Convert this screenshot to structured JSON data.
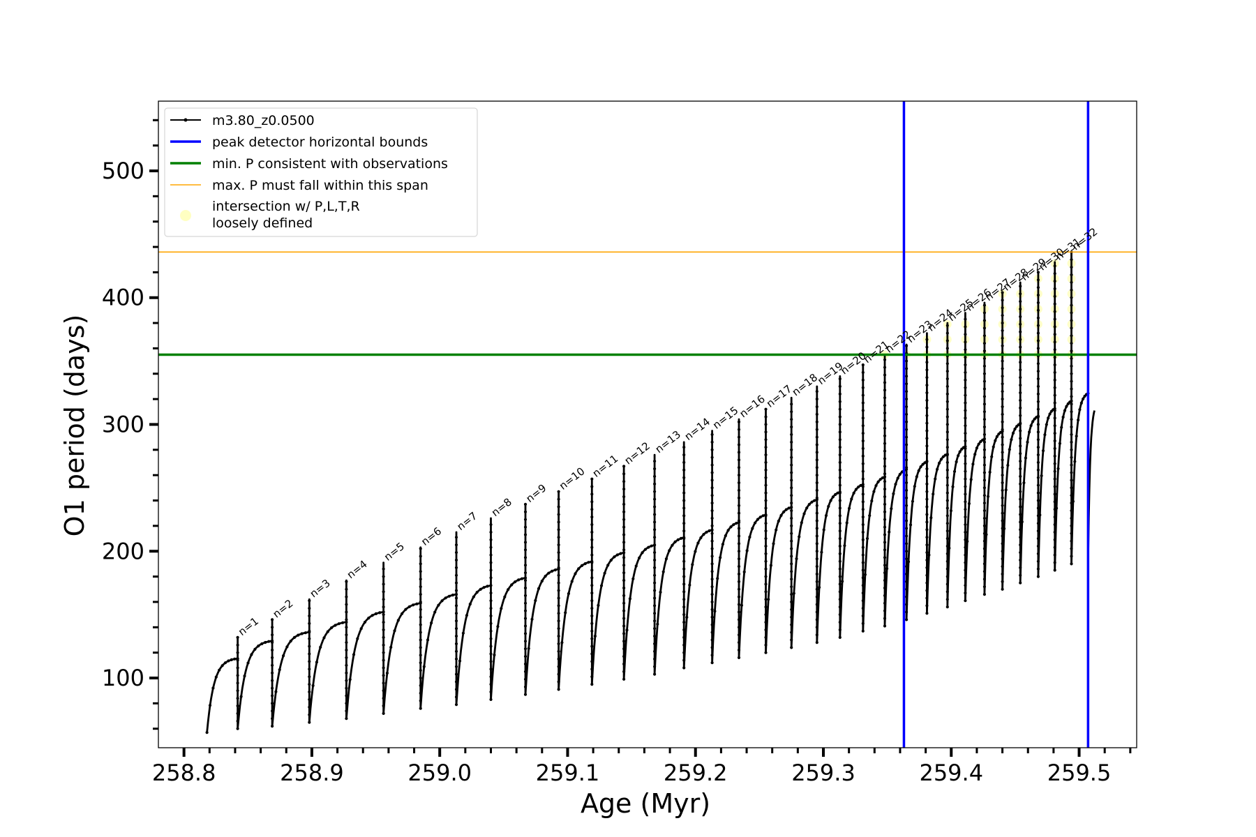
{
  "chart_data": {
    "type": "line",
    "xlabel": "Age (Myr)",
    "ylabel": "O1 period (days)",
    "xlim": [
      258.78,
      259.545
    ],
    "ylim": [
      45,
      555
    ],
    "x_ticks": [
      258.8,
      258.9,
      259.0,
      259.1,
      259.2,
      259.3,
      259.4,
      259.5
    ],
    "x_tick_labels": [
      "258.8",
      "258.9",
      "259.0",
      "259.1",
      "259.2",
      "259.3",
      "259.4",
      "259.5"
    ],
    "y_ticks": [
      100,
      200,
      300,
      400,
      500
    ],
    "y_tick_labels": [
      "100",
      "200",
      "300",
      "400",
      "500"
    ],
    "grid": false,
    "legend_placement": "top-left",
    "legend": [
      {
        "label": "m3.80_z0.0500",
        "style": "line-marker",
        "color": "#000000"
      },
      {
        "label": "peak detector horizontal bounds",
        "style": "line",
        "color": "#0000ff"
      },
      {
        "label": "min. P consistent with observations",
        "style": "line",
        "color": "#008000"
      },
      {
        "label": "max. P must fall within this span",
        "style": "thin-line",
        "color": "#ffa500"
      },
      {
        "label": "intersection w/ P,L,T,R",
        "label_line2": "loosely defined",
        "style": "dot",
        "color": "#ffff99"
      }
    ],
    "vertical_bounds": [
      259.363,
      259.507
    ],
    "hlines": {
      "min_p": 355,
      "max_p": 436
    },
    "series": [
      {
        "name": "m3.80_z0.0500",
        "cycles": [
          {
            "n": null,
            "start": 258.818,
            "end": 258.842,
            "min": 57,
            "max": 116,
            "peak": null
          },
          {
            "n": 1,
            "start": 258.842,
            "end": 258.869,
            "min": 60,
            "max": 130,
            "peak": 132
          },
          {
            "n": 2,
            "start": 258.869,
            "end": 258.898,
            "min": 62,
            "max": 137,
            "peak": 146
          },
          {
            "n": 3,
            "start": 258.898,
            "end": 258.927,
            "min": 65,
            "max": 145,
            "peak": 162
          },
          {
            "n": 4,
            "start": 258.927,
            "end": 258.956,
            "min": 68,
            "max": 153,
            "peak": 177
          },
          {
            "n": 5,
            "start": 258.956,
            "end": 258.985,
            "min": 72,
            "max": 160,
            "peak": 191
          },
          {
            "n": 6,
            "start": 258.985,
            "end": 259.013,
            "min": 76,
            "max": 167,
            "peak": 203
          },
          {
            "n": 7,
            "start": 259.013,
            "end": 259.04,
            "min": 79,
            "max": 174,
            "peak": 215
          },
          {
            "n": 8,
            "start": 259.04,
            "end": 259.067,
            "min": 83,
            "max": 180,
            "peak": 226
          },
          {
            "n": 9,
            "start": 259.067,
            "end": 259.093,
            "min": 87,
            "max": 187,
            "peak": 237
          },
          {
            "n": 10,
            "start": 259.093,
            "end": 259.119,
            "min": 91,
            "max": 193,
            "peak": 247
          },
          {
            "n": 11,
            "start": 259.119,
            "end": 259.144,
            "min": 95,
            "max": 200,
            "peak": 257
          },
          {
            "n": 12,
            "start": 259.144,
            "end": 259.168,
            "min": 99,
            "max": 206,
            "peak": 267
          },
          {
            "n": 13,
            "start": 259.168,
            "end": 259.191,
            "min": 103,
            "max": 212,
            "peak": 276
          },
          {
            "n": 14,
            "start": 259.191,
            "end": 259.213,
            "min": 108,
            "max": 218,
            "peak": 286
          },
          {
            "n": 15,
            "start": 259.213,
            "end": 259.234,
            "min": 112,
            "max": 224,
            "peak": 295
          },
          {
            "n": 16,
            "start": 259.234,
            "end": 259.255,
            "min": 116,
            "max": 230,
            "peak": 304
          },
          {
            "n": 17,
            "start": 259.255,
            "end": 259.275,
            "min": 120,
            "max": 236,
            "peak": 312
          },
          {
            "n": 18,
            "start": 259.275,
            "end": 259.295,
            "min": 124,
            "max": 242,
            "peak": 321
          },
          {
            "n": 19,
            "start": 259.295,
            "end": 259.313,
            "min": 128,
            "max": 248,
            "peak": 330
          },
          {
            "n": 20,
            "start": 259.313,
            "end": 259.331,
            "min": 132,
            "max": 254,
            "peak": 338
          },
          {
            "n": 21,
            "start": 259.331,
            "end": 259.348,
            "min": 137,
            "max": 260,
            "peak": 347
          },
          {
            "n": 22,
            "start": 259.348,
            "end": 259.365,
            "min": 141,
            "max": 266,
            "peak": 355
          },
          {
            "n": 23,
            "start": 259.365,
            "end": 259.381,
            "min": 146,
            "max": 272,
            "peak": 363
          },
          {
            "n": 24,
            "start": 259.381,
            "end": 259.397,
            "min": 151,
            "max": 278,
            "peak": 372
          },
          {
            "n": 25,
            "start": 259.397,
            "end": 259.411,
            "min": 156,
            "max": 284,
            "peak": 380
          },
          {
            "n": 26,
            "start": 259.411,
            "end": 259.426,
            "min": 161,
            "max": 290,
            "peak": 388
          },
          {
            "n": 27,
            "start": 259.426,
            "end": 259.44,
            "min": 166,
            "max": 296,
            "peak": 396
          },
          {
            "n": 28,
            "start": 259.44,
            "end": 259.454,
            "min": 170,
            "max": 302,
            "peak": 404
          },
          {
            "n": 29,
            "start": 259.454,
            "end": 259.468,
            "min": 175,
            "max": 308,
            "peak": 412
          },
          {
            "n": 30,
            "start": 259.468,
            "end": 259.481,
            "min": 180,
            "max": 314,
            "peak": 420
          },
          {
            "n": 31,
            "start": 259.481,
            "end": 259.494,
            "min": 185,
            "max": 320,
            "peak": 428
          },
          {
            "n": 32,
            "start": 259.494,
            "end": 259.507,
            "min": 190,
            "max": 326,
            "peak": 436
          }
        ],
        "final_segment": {
          "start": 259.507,
          "end": 259.512,
          "min": 195,
          "max": 317
        }
      }
    ],
    "peak_labels": [
      "n=1",
      "n=2",
      "n=3",
      "n=4",
      "n=5",
      "n=6",
      "n=7",
      "n=8",
      "n=9",
      "n=10",
      "n=11",
      "n=12",
      "n=13",
      "n=14",
      "n=15",
      "n=16",
      "n=17",
      "n=18",
      "n=19",
      "n=20",
      "n=21",
      "n=22",
      "n=23",
      "n=24",
      "n=25",
      "n=26",
      "n=27",
      "n=28",
      "n=29",
      "n=30",
      "n=31",
      "n=32"
    ]
  }
}
